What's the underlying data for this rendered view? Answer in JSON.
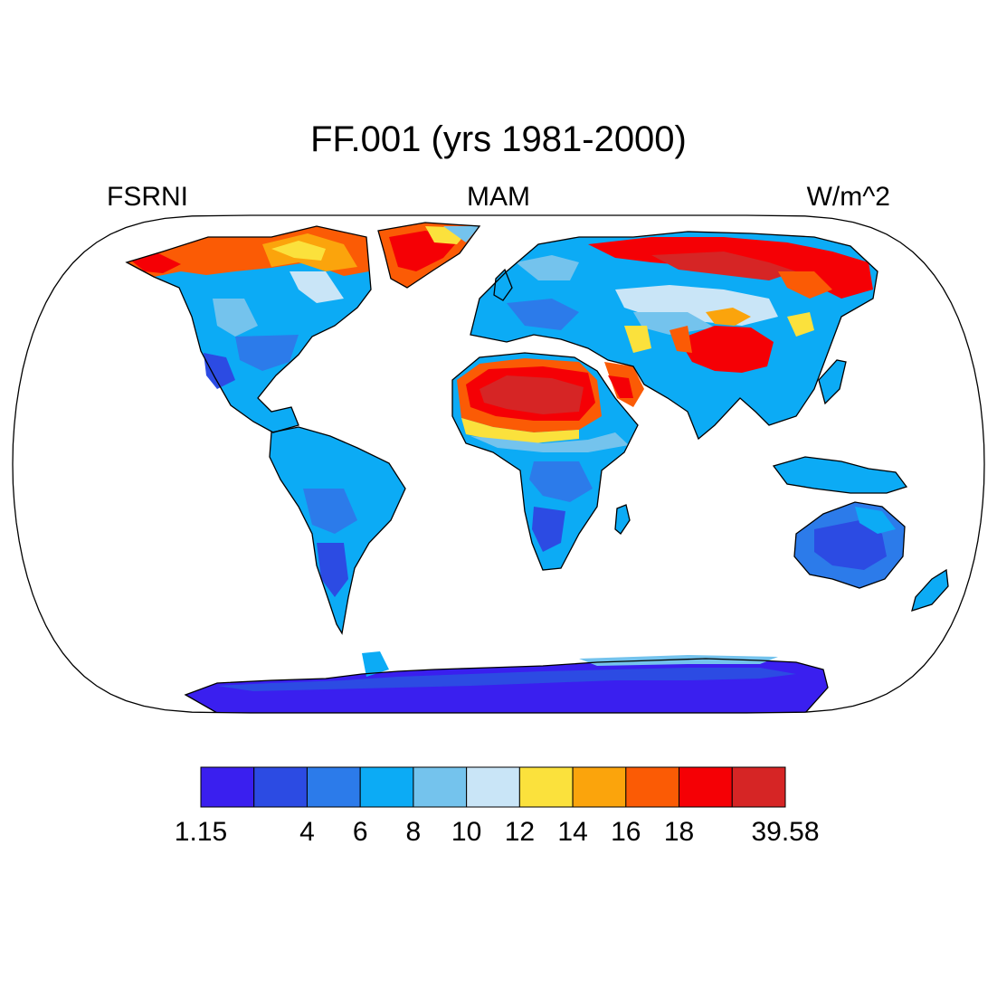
{
  "title": "FF.001 (yrs 1981-2000)",
  "variable": "FSRNI",
  "season": "MAM",
  "units": "W/m^2",
  "colorbar": {
    "colors": [
      "#3a1fef",
      "#2c4be3",
      "#2c7bea",
      "#0cabf5",
      "#74c3ed",
      "#c9e5f7",
      "#fbe13c",
      "#fba40c",
      "#fb5b05",
      "#f50005",
      "#d62525"
    ],
    "labels": [
      {
        "text": "1.15",
        "boundary": 0
      },
      {
        "text": "4",
        "boundary": 2
      },
      {
        "text": "6",
        "boundary": 3
      },
      {
        "text": "8",
        "boundary": 4
      },
      {
        "text": "10",
        "boundary": 5
      },
      {
        "text": "12",
        "boundary": 6
      },
      {
        "text": "14",
        "boundary": 7
      },
      {
        "text": "16",
        "boundary": 8
      },
      {
        "text": "18",
        "boundary": 9
      },
      {
        "text": "39.58",
        "boundary": 11
      }
    ]
  },
  "map": {
    "projection": "robinson",
    "background": "#ffffff",
    "coastline_color": "#000000"
  }
}
